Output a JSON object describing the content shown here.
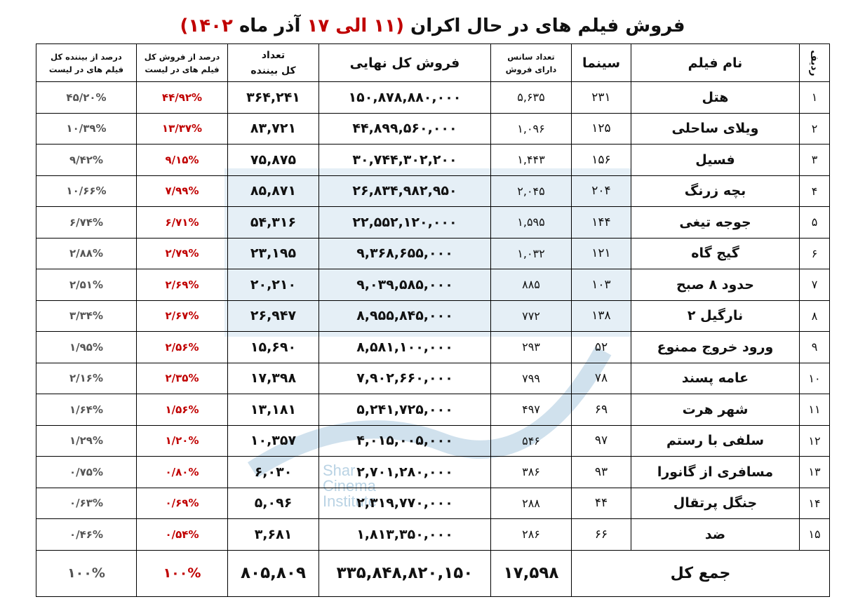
{
  "title": {
    "text_before": "فروش فیلم های در حال اکران",
    "range": "(۱۱ الی ۱۷",
    "month": "آذر ماه",
    "year": "۱۴۰۲)"
  },
  "watermark": {
    "lines": [
      "Shar",
      "Cinema",
      "Institute"
    ]
  },
  "headers": {
    "rank": "ردیف",
    "name": "نام فیلم",
    "cinema": "سینما",
    "sessions_line1": "تعداد سانس",
    "sessions_line2": "دارای فروش",
    "sales": "فروش کل نهایی",
    "viewers_line1": "تعداد",
    "viewers_line2": "کل بیننده",
    "pct_sales_line1": "درصد از فروش کل",
    "pct_sales_line2": "فیلم های در لیست",
    "pct_viewers_line1": "درصد از بیننده کل",
    "pct_viewers_line2": "فیلم های در لیست"
  },
  "rows": [
    {
      "rank": "۱",
      "name": "هتل",
      "cinema": "۲۳۱",
      "sessions": "۵,۶۳۵",
      "sales": "۱۵۰,۸۷۸,۸۸۰,۰۰۰",
      "viewers": "۳۶۴,۲۴۱",
      "pct_sales": "۴۴/۹۲%",
      "pct_viewers": "۴۵/۲۰%"
    },
    {
      "rank": "۲",
      "name": "ویلای ساحلی",
      "cinema": "۱۲۵",
      "sessions": "۱,۰۹۶",
      "sales": "۴۴,۸۹۹,۵۶۰,۰۰۰",
      "viewers": "۸۳,۷۲۱",
      "pct_sales": "۱۳/۳۷%",
      "pct_viewers": "۱۰/۳۹%"
    },
    {
      "rank": "۳",
      "name": "فسیل",
      "cinema": "۱۵۶",
      "sessions": "۱,۴۴۳",
      "sales": "۳۰,۷۴۴,۳۰۲,۲۰۰",
      "viewers": "۷۵,۸۷۵",
      "pct_sales": "۹/۱۵%",
      "pct_viewers": "۹/۴۲%"
    },
    {
      "rank": "۴",
      "name": "بچه زرنگ",
      "cinema": "۲۰۴",
      "sessions": "۲,۰۴۵",
      "sales": "۲۶,۸۳۴,۹۸۲,۹۵۰",
      "viewers": "۸۵,۸۷۱",
      "pct_sales": "۷/۹۹%",
      "pct_viewers": "۱۰/۶۶%"
    },
    {
      "rank": "۵",
      "name": "جوجه تیغی",
      "cinema": "۱۴۴",
      "sessions": "۱,۵۹۵",
      "sales": "۲۲,۵۵۲,۱۲۰,۰۰۰",
      "viewers": "۵۴,۳۱۶",
      "pct_sales": "۶/۷۱%",
      "pct_viewers": "۶/۷۴%"
    },
    {
      "rank": "۶",
      "name": "گیج گاه",
      "cinema": "۱۲۱",
      "sessions": "۱,۰۳۲",
      "sales": "۹,۳۶۸,۶۵۵,۰۰۰",
      "viewers": "۲۳,۱۹۵",
      "pct_sales": "۲/۷۹%",
      "pct_viewers": "۲/۸۸%"
    },
    {
      "rank": "۷",
      "name": "حدود ۸ صبح",
      "cinema": "۱۰۳",
      "sessions": "۸۸۵",
      "sales": "۹,۰۳۹,۵۸۵,۰۰۰",
      "viewers": "۲۰,۲۱۰",
      "pct_sales": "۲/۶۹%",
      "pct_viewers": "۲/۵۱%"
    },
    {
      "rank": "۸",
      "name": "نارگیل ۲",
      "cinema": "۱۳۸",
      "sessions": "۷۷۲",
      "sales": "۸,۹۵۵,۸۴۵,۰۰۰",
      "viewers": "۲۶,۹۴۷",
      "pct_sales": "۲/۶۷%",
      "pct_viewers": "۳/۳۴%"
    },
    {
      "rank": "۹",
      "name": "ورود خروج ممنوع",
      "cinema": "۵۲",
      "sessions": "۲۹۳",
      "sales": "۸,۵۸۱,۱۰۰,۰۰۰",
      "viewers": "۱۵,۶۹۰",
      "pct_sales": "۲/۵۶%",
      "pct_viewers": "۱/۹۵%"
    },
    {
      "rank": "۱۰",
      "name": "عامه پسند",
      "cinema": "۷۸",
      "sessions": "۷۹۹",
      "sales": "۷,۹۰۲,۶۶۰,۰۰۰",
      "viewers": "۱۷,۳۹۸",
      "pct_sales": "۲/۳۵%",
      "pct_viewers": "۲/۱۶%"
    },
    {
      "rank": "۱۱",
      "name": "شهر هرت",
      "cinema": "۶۹",
      "sessions": "۴۹۷",
      "sales": "۵,۲۴۱,۷۲۵,۰۰۰",
      "viewers": "۱۳,۱۸۱",
      "pct_sales": "۱/۵۶%",
      "pct_viewers": "۱/۶۴%"
    },
    {
      "rank": "۱۲",
      "name": "سلفی با رستم",
      "cinema": "۹۷",
      "sessions": "۵۴۶",
      "sales": "۴,۰۱۵,۰۰۵,۰۰۰",
      "viewers": "۱۰,۳۵۷",
      "pct_sales": "۱/۲۰%",
      "pct_viewers": "۱/۲۹%"
    },
    {
      "rank": "۱۳",
      "name": "مسافری از گانورا",
      "cinema": "۹۳",
      "sessions": "۳۸۶",
      "sales": "۲,۷۰۱,۲۸۰,۰۰۰",
      "viewers": "۶,۰۳۰",
      "pct_sales": "۰/۸۰%",
      "pct_viewers": "۰/۷۵%"
    },
    {
      "rank": "۱۴",
      "name": "جنگل پرتقال",
      "cinema": "۴۴",
      "sessions": "۲۸۸",
      "sales": "۲,۳۱۹,۷۷۰,۰۰۰",
      "viewers": "۵,۰۹۶",
      "pct_sales": "۰/۶۹%",
      "pct_viewers": "۰/۶۳%"
    },
    {
      "rank": "۱۵",
      "name": "ضد",
      "cinema": "۶۶",
      "sessions": "۲۸۶",
      "sales": "۱,۸۱۳,۳۵۰,۰۰۰",
      "viewers": "۳,۶۸۱",
      "pct_sales": "۰/۵۴%",
      "pct_viewers": "۰/۴۶%"
    }
  ],
  "total": {
    "label": "جمع کل",
    "sessions": "۱۷,۵۹۸",
    "sales": "۳۳۵,۸۴۸,۸۲۰,۱۵۰",
    "viewers": "۸۰۵,۸۰۹",
    "pct_sales": "۱۰۰%",
    "pct_viewers": "۱۰۰%"
  },
  "colors": {
    "accent_red": "#c00000",
    "grey_text": "#555555",
    "watermark": "#9fc3dc"
  }
}
